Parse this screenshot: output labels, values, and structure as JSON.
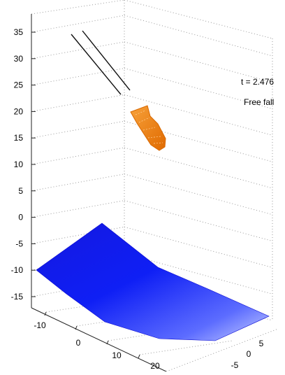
{
  "chart_data": {
    "type": "surface",
    "title": "",
    "xlabel": "",
    "ylabel": "",
    "zlabel": "",
    "grid": true,
    "x_ticks": [
      "-10",
      "0",
      "10",
      "20"
    ],
    "y_ticks": [
      "-5",
      "0",
      "5"
    ],
    "z_ticks": [
      "35",
      "30",
      "25",
      "20",
      "15",
      "10",
      "5",
      "0",
      "-5",
      "-10",
      "-15"
    ],
    "annotations": {
      "time": "t = 2.476",
      "phase": "Free fall"
    },
    "objects": [
      {
        "name": "ground slope surface",
        "color": "#0000ff"
      },
      {
        "name": "falling body",
        "color": "#ff8000"
      },
      {
        "name": "rail lines",
        "color": "#000000"
      }
    ]
  }
}
